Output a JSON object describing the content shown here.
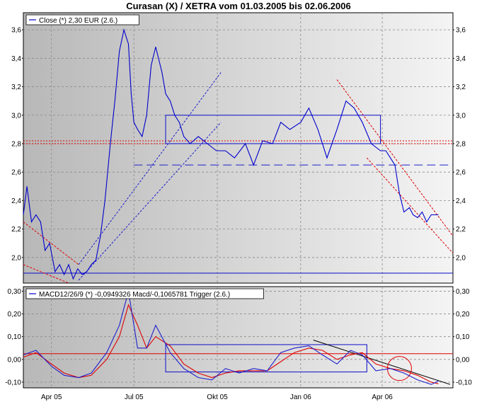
{
  "title": "Curasan (X) / XETRA vom 01.03.2005 bis 02.06.2006",
  "chart_data": [
    {
      "type": "line",
      "name": "price",
      "legend": "Close (*) 2,30 EUR (2.6.)",
      "ylim": [
        1.82,
        3.72
      ],
      "yticks": [
        2.0,
        2.2,
        2.4,
        2.6,
        2.8,
        3.0,
        3.2,
        3.4,
        3.6
      ],
      "yticklabels": [
        "2,0",
        "2,2",
        "2,4",
        "2,6",
        "2,8",
        "3,0",
        "3,2",
        "3,4",
        "3,6"
      ],
      "grid": true,
      "series": [
        {
          "x": [
            "2005-03-01",
            "2005-03-05",
            "2005-03-10",
            "2005-03-15",
            "2005-03-20",
            "2005-03-25",
            "2005-03-30",
            "2005-04-05",
            "2005-04-10",
            "2005-04-15",
            "2005-04-20",
            "2005-04-25",
            "2005-04-30",
            "2005-05-05",
            "2005-05-10",
            "2005-05-15",
            "2005-05-20",
            "2005-05-25",
            "2005-05-30",
            "2005-06-05",
            "2005-06-10",
            "2005-06-15",
            "2005-06-20",
            "2005-06-25",
            "2005-06-28",
            "2005-07-01",
            "2005-07-05",
            "2005-07-10",
            "2005-07-15",
            "2005-07-20",
            "2005-07-25",
            "2005-08-01",
            "2005-08-05",
            "2005-08-10",
            "2005-08-15",
            "2005-08-20",
            "2005-08-25",
            "2005-09-01",
            "2005-09-10",
            "2005-09-20",
            "2005-09-30",
            "2005-10-10",
            "2005-10-20",
            "2005-11-01",
            "2005-11-10",
            "2005-11-20",
            "2005-12-01",
            "2005-12-10",
            "2005-12-20",
            "2006-01-01",
            "2006-01-10",
            "2006-01-20",
            "2006-01-30",
            "2006-02-10",
            "2006-02-20",
            "2006-03-01",
            "2006-03-10",
            "2006-03-20",
            "2006-03-30",
            "2006-04-05",
            "2006-04-10",
            "2006-04-15",
            "2006-04-20",
            "2006-04-25",
            "2006-05-01",
            "2006-05-05",
            "2006-05-10",
            "2006-05-15",
            "2006-05-20",
            "2006-05-25",
            "2006-06-02"
          ],
          "y": [
            2.3,
            2.5,
            2.25,
            2.3,
            2.25,
            2.05,
            2.1,
            1.9,
            1.95,
            1.88,
            1.95,
            1.85,
            1.92,
            1.88,
            1.9,
            1.95,
            1.98,
            2.15,
            2.4,
            2.8,
            3.1,
            3.45,
            3.6,
            3.5,
            3.15,
            2.95,
            2.9,
            2.85,
            3.0,
            3.35,
            3.48,
            3.3,
            3.15,
            3.1,
            3.0,
            2.95,
            2.85,
            2.8,
            2.85,
            2.8,
            2.75,
            2.75,
            2.7,
            2.8,
            2.65,
            2.82,
            2.8,
            2.95,
            2.9,
            2.95,
            3.05,
            2.9,
            2.7,
            2.9,
            3.1,
            3.05,
            2.95,
            2.8,
            2.75,
            2.75,
            2.7,
            2.65,
            2.45,
            2.32,
            2.35,
            2.3,
            2.28,
            2.32,
            2.25,
            2.3,
            2.3
          ]
        }
      ]
    },
    {
      "type": "line",
      "name": "macd",
      "legend": "MACD12/26/9 (*) -0,0949326 Macd/-0,1065781 Trigger (2.6.)",
      "ylim": [
        -0.125,
        0.32
      ],
      "yticks": [
        -0.1,
        0.0,
        0.1,
        0.2,
        0.3
      ],
      "yticklabels": [
        "-0,10",
        "0,00",
        "0,10",
        "0,20",
        "0,30"
      ],
      "grid": true,
      "series": [
        {
          "name": "Macd",
          "color": "#1f1fcc",
          "x": [
            "2005-03-01",
            "2005-03-15",
            "2005-04-01",
            "2005-04-15",
            "2005-05-01",
            "2005-05-15",
            "2005-06-01",
            "2005-06-15",
            "2005-06-25",
            "2005-07-05",
            "2005-07-15",
            "2005-07-25",
            "2005-08-10",
            "2005-08-25",
            "2005-09-10",
            "2005-09-25",
            "2005-10-10",
            "2005-10-25",
            "2005-11-10",
            "2005-11-25",
            "2005-12-10",
            "2005-12-25",
            "2006-01-10",
            "2006-01-25",
            "2006-02-10",
            "2006-02-25",
            "2006-03-10",
            "2006-03-25",
            "2006-04-10",
            "2006-04-25",
            "2006-05-10",
            "2006-05-25",
            "2006-06-02"
          ],
          "y": [
            0.02,
            0.04,
            -0.03,
            -0.07,
            -0.08,
            -0.06,
            0.03,
            0.15,
            0.3,
            0.05,
            0.05,
            0.15,
            0.03,
            -0.04,
            -0.08,
            -0.09,
            -0.04,
            -0.06,
            -0.04,
            -0.05,
            0.03,
            0.05,
            0.06,
            0.02,
            -0.02,
            0.04,
            0.02,
            -0.05,
            -0.04,
            -0.06,
            -0.09,
            -0.11,
            -0.095
          ]
        },
        {
          "name": "Trigger",
          "color": "#e00000",
          "x": [
            "2005-03-01",
            "2005-03-15",
            "2005-04-01",
            "2005-04-15",
            "2005-05-01",
            "2005-05-15",
            "2005-06-01",
            "2005-06-15",
            "2005-06-25",
            "2005-07-05",
            "2005-07-15",
            "2005-07-25",
            "2005-08-10",
            "2005-08-25",
            "2005-09-10",
            "2005-09-25",
            "2005-10-10",
            "2005-10-25",
            "2005-11-10",
            "2005-11-25",
            "2005-12-10",
            "2005-12-25",
            "2006-01-10",
            "2006-01-25",
            "2006-02-10",
            "2006-02-25",
            "2006-03-10",
            "2006-03-25",
            "2006-04-10",
            "2006-04-25",
            "2006-05-10",
            "2006-05-25",
            "2006-06-02"
          ],
          "y": [
            0.01,
            0.03,
            -0.02,
            -0.06,
            -0.08,
            -0.07,
            0.0,
            0.1,
            0.24,
            0.15,
            0.05,
            0.1,
            0.06,
            -0.02,
            -0.06,
            -0.08,
            -0.06,
            -0.05,
            -0.05,
            -0.05,
            -0.01,
            0.03,
            0.05,
            0.04,
            0.0,
            0.02,
            0.03,
            -0.02,
            -0.04,
            -0.05,
            -0.07,
            -0.1,
            -0.107
          ]
        }
      ]
    }
  ],
  "xticks": [
    {
      "date": "2005-04-01",
      "label": "Apr 05"
    },
    {
      "date": "2005-07-01",
      "label": "Jul 05"
    },
    {
      "date": "2005-10-01",
      "label": "Okt 05"
    },
    {
      "date": "2006-01-01",
      "label": "Jan 06"
    },
    {
      "date": "2006-04-01",
      "label": "Apr 06"
    }
  ],
  "colors": {
    "price": "#0000cc",
    "horizontal_line": "#1f1fcc",
    "trend": "#e00000",
    "trigger": "#e00000"
  },
  "annotations": {
    "price_levels": [
      2.82,
      2.8,
      2.65,
      1.89
    ],
    "macd_levels": [
      0.025
    ]
  }
}
